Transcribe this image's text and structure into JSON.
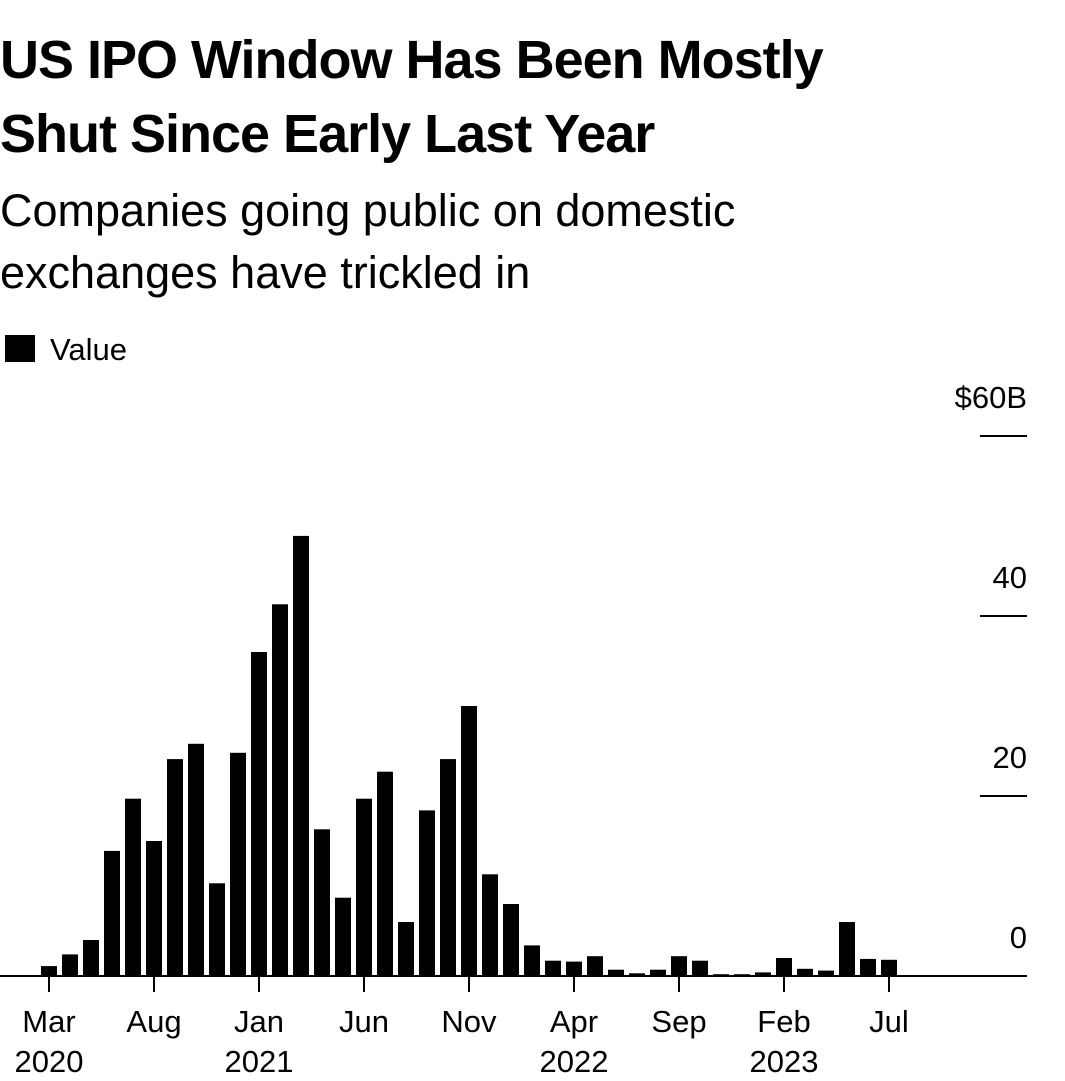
{
  "chart_data": {
    "type": "bar",
    "title": [
      "US IPO Window Has Been Mostly",
      "Shut Since Early Last Year"
    ],
    "subtitle": [
      "Companies going public on domestic",
      "exchanges have trickled in"
    ],
    "categories": [
      "Mar 2020",
      null,
      null,
      null,
      null,
      "Aug",
      null,
      null,
      null,
      null,
      "Jan 2021",
      null,
      null,
      null,
      null,
      "Jun",
      null,
      null,
      null,
      null,
      "Nov",
      null,
      null,
      null,
      null,
      "Apr 2022",
      null,
      null,
      null,
      null,
      "Sep",
      null,
      null,
      null,
      null,
      "Feb 2023",
      null,
      null,
      null,
      null,
      "Jul"
    ],
    "series": [
      {
        "name": "Value",
        "color": "#000000",
        "values": [
          1.1,
          2.4,
          4,
          13.9,
          19.7,
          15,
          24.1,
          25.8,
          10.3,
          24.8,
          36,
          41.3,
          48.9,
          16.3,
          8.7,
          19.7,
          22.7,
          6,
          18.4,
          24.1,
          30,
          11.3,
          8,
          3.4,
          1.7,
          1.6,
          2.2,
          0.7,
          0.3,
          0.7,
          2.2,
          1.7,
          0.2,
          0.2,
          0.4,
          2,
          0.8,
          0.6,
          6,
          1.9,
          1.8
        ]
      }
    ],
    "ylim": [
      0,
      60
    ],
    "yticks": [
      0,
      20,
      40,
      {
        "value": 60,
        "label": "$60B"
      }
    ]
  }
}
